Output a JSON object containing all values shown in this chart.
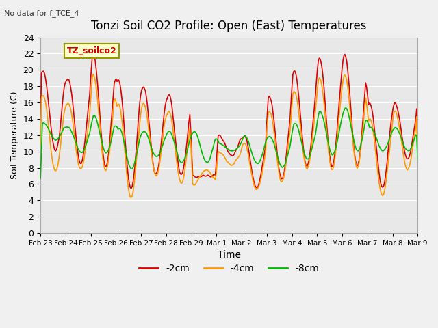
{
  "title": "Tonzi Soil CO2 Profile: Open (East) Temperatures",
  "subtitle": "No data for f_TCE_4",
  "xlabel": "Time",
  "ylabel": "Soil Temperature (C)",
  "ylim": [
    0,
    24
  ],
  "yticks": [
    0,
    2,
    4,
    6,
    8,
    10,
    12,
    14,
    16,
    18,
    20,
    22,
    24
  ],
  "xtick_labels": [
    "Feb 23",
    "Feb 24",
    "Feb 25",
    "Feb 26",
    "Feb 27",
    "Feb 28",
    "Feb 29",
    "Mar 1",
    "Mar 2",
    "Mar 3",
    "Mar 4",
    "Mar 5",
    "Mar 6",
    "Mar 7",
    "Mar 8",
    "Mar 9"
  ],
  "color_2cm": "#dd0000",
  "color_4cm": "#ff9900",
  "color_8cm": "#00bb00",
  "legend_label_2cm": "-2cm",
  "legend_label_4cm": "-4cm",
  "legend_label_8cm": "-8cm",
  "legend_box_text": "TZ_soilco2",
  "legend_box_bg": "#ffffcc",
  "legend_box_border": "#999900",
  "plot_bg_color": "#e8e8e8",
  "grid_color": "#ffffff",
  "n_points": 400
}
